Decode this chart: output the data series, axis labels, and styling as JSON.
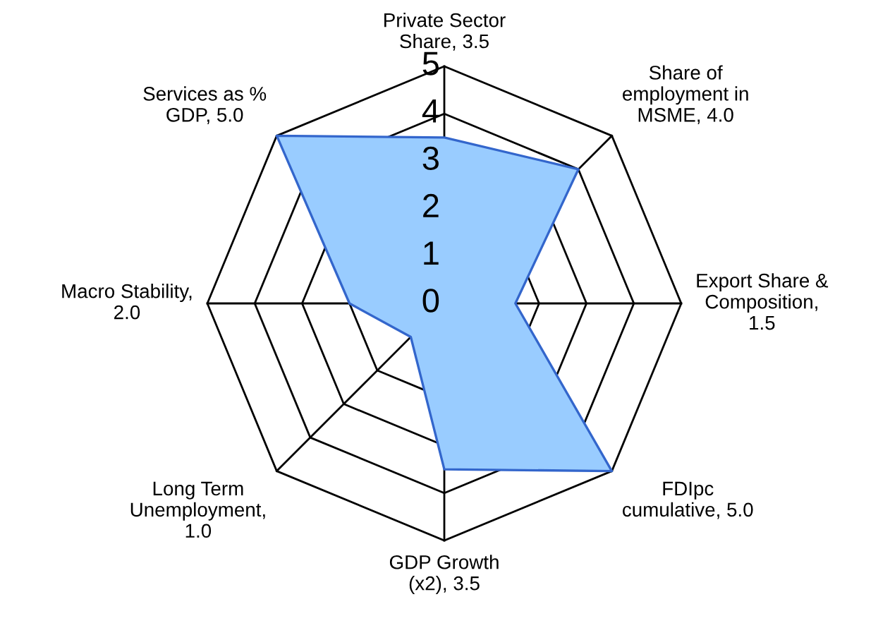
{
  "chart_data": {
    "type": "radar",
    "categories": [
      "Private Sector\nShare, 3.5",
      "Share of\nemployment in\nMSME, 4.0",
      "Export Share &\nComposition,\n1.5",
      "FDIpc\ncumulative, 5.0",
      "GDP Growth\n(x2), 3.5",
      "Long Term\nUnemployment,\n1.0",
      "Macro Stability,\n2.0",
      "Services as %\nGDP, 5.0"
    ],
    "series": [
      {
        "color": "#99ccff",
        "values": [
          3.5,
          4.0,
          1.5,
          5.0,
          3.5,
          1.0,
          2.0,
          5.0
        ]
      }
    ],
    "ylim": [
      0,
      5
    ],
    "yticks": [
      0,
      1,
      2,
      3,
      4,
      5
    ],
    "grid": true
  }
}
